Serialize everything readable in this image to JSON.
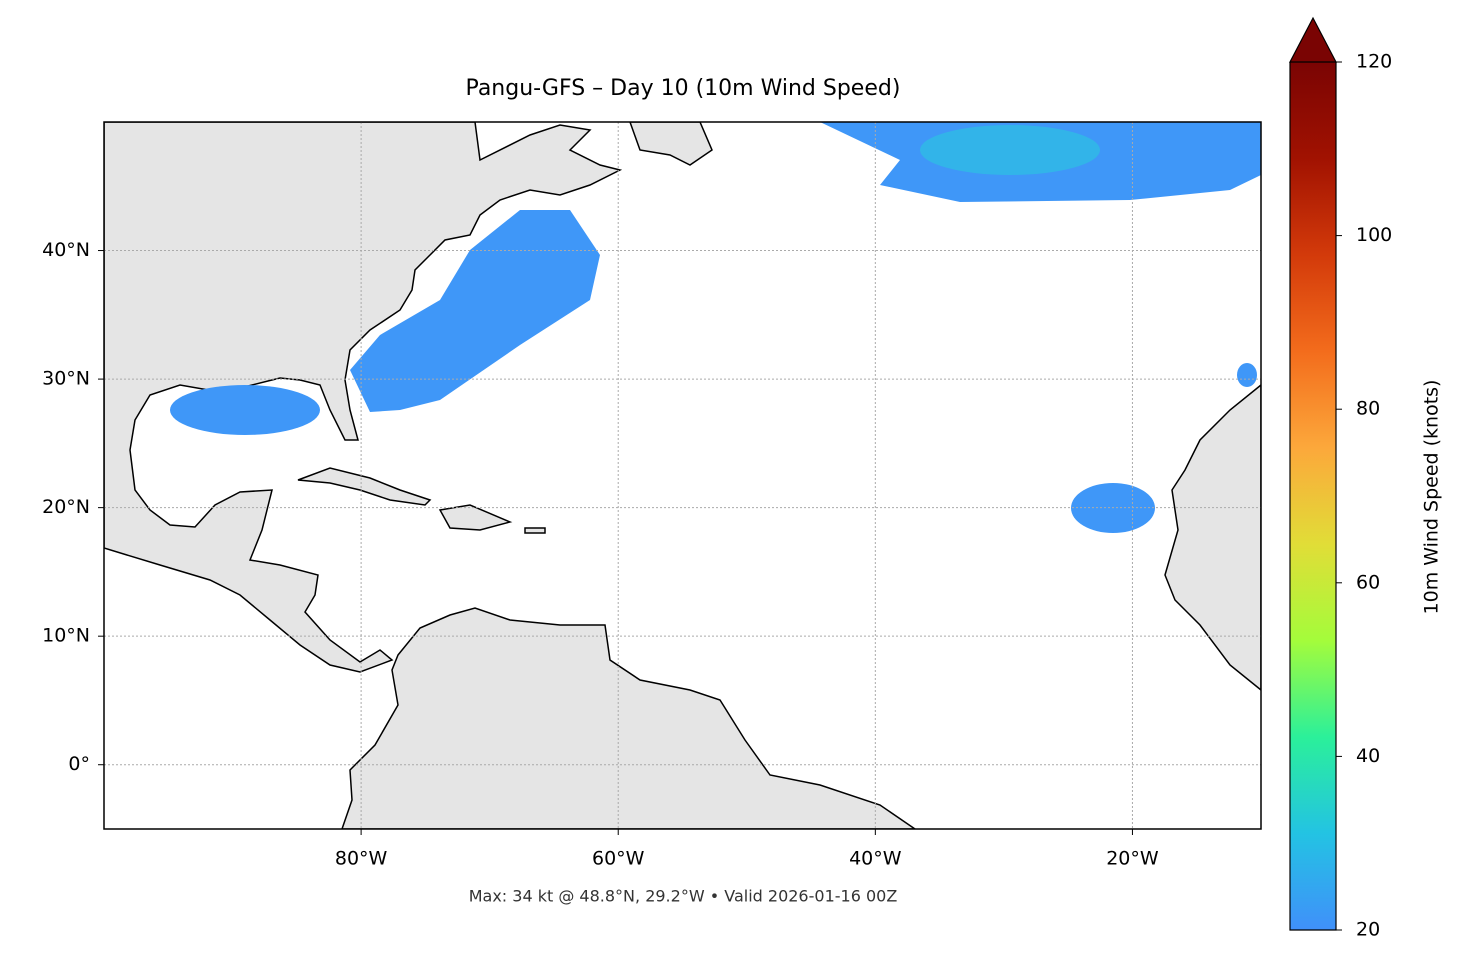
{
  "chart_data": {
    "type": "map",
    "title": "Pangu-GFS – Day 10 (10m Wind Speed)",
    "note": "Max: 34 kt @ 48.8°N, 29.2°W • Valid 2026-01-16 00Z",
    "xlim": [
      -100,
      -10
    ],
    "ylim": [
      -5,
      50
    ],
    "xticks": [
      {
        "value": -80,
        "label": "80°W"
      },
      {
        "value": -60,
        "label": "60°W"
      },
      {
        "value": -40,
        "label": "40°W"
      },
      {
        "value": -20,
        "label": "20°W"
      }
    ],
    "yticks": [
      {
        "value": 0,
        "label": "0°"
      },
      {
        "value": 10,
        "label": "10°N"
      },
      {
        "value": 20,
        "label": "20°N"
      },
      {
        "value": 30,
        "label": "30°N"
      },
      {
        "value": 40,
        "label": "40°N"
      }
    ],
    "grid": true,
    "colorbar": {
      "label": "10m Wind Speed (knots)",
      "lim": [
        20,
        120
      ],
      "ticks": [
        20,
        40,
        60,
        80,
        100,
        120
      ],
      "extend": "max",
      "colors": [
        "#4090fa",
        "#23c3e3",
        "#2bf09a",
        "#a4fc3b",
        "#e1dd37",
        "#fca83b",
        "#f36c1c",
        "#d33a0a",
        "#a11201",
        "#7a0403"
      ]
    }
  }
}
